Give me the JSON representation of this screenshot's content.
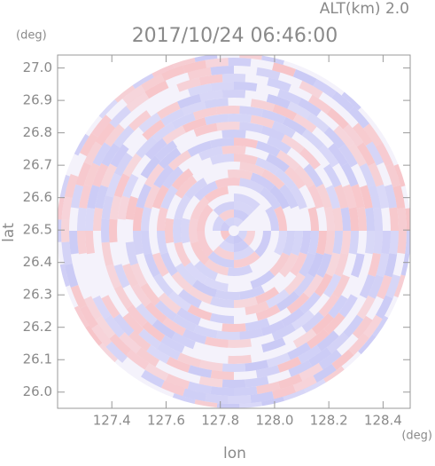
{
  "chart_data": {
    "type": "radar-ppi",
    "title": "2017/10/24 06:46:00",
    "altitude_label": "ALT(km) 2.0",
    "y_unit": "(deg)",
    "x_unit": "(deg)",
    "xlabel": "lon",
    "ylabel": "lat",
    "xlim": [
      127.2,
      128.5
    ],
    "xticks": [
      127.4,
      127.6,
      127.8,
      {
        "value": 128,
        "label": "128.0"
      },
      128.2,
      128.4
    ],
    "ylim": [
      25.95,
      27.04
    ],
    "yticks": [
      {
        "value": 26,
        "label": "26.0"
      },
      26.1,
      26.2,
      26.3,
      26.4,
      26.5,
      26.6,
      26.7,
      26.8,
      26.9,
      {
        "value": 27,
        "label": "27.0"
      }
    ]
  }
}
